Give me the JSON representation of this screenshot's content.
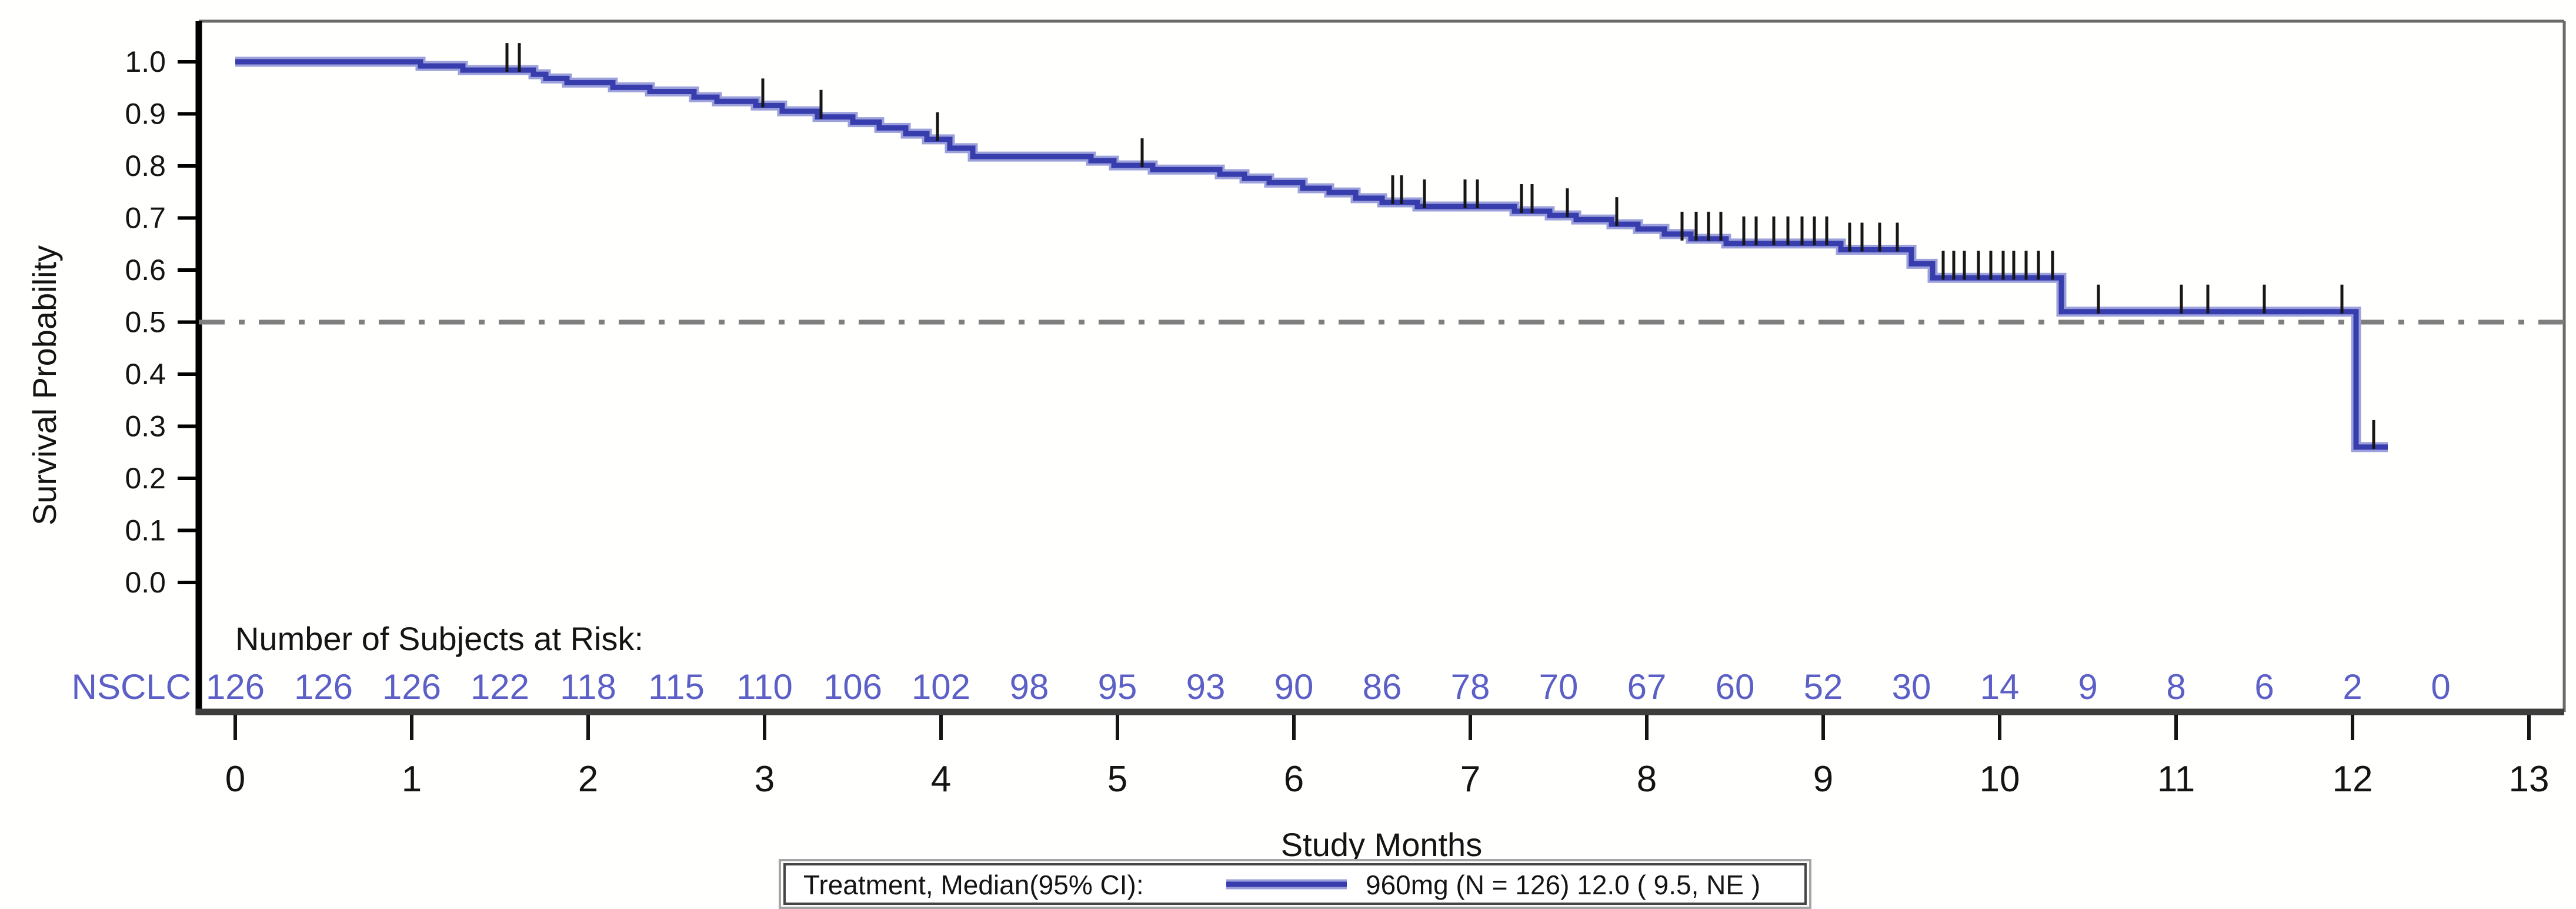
{
  "colors": {
    "curve": "#373dac",
    "curve_halo": "#9ca1db",
    "censor": "#161616",
    "risk_text": "#5b5fc6",
    "reference_line": "#7e7e7e",
    "axis": "#000000",
    "axis_bottom": "#3d3d3d",
    "frame": "#6a6a6a",
    "text": "#141414",
    "legend_border": "#454545",
    "legend_border_outer": "#a5a5a5"
  },
  "y_axis": {
    "label": "Survival Probability",
    "ticks": [
      1.0,
      0.9,
      0.8,
      0.7,
      0.6,
      0.5,
      0.4,
      0.3,
      0.2,
      0.1,
      0.0
    ]
  },
  "x_axis": {
    "label": "Study Months",
    "ticks": [
      0,
      1,
      2,
      3,
      4,
      5,
      6,
      7,
      8,
      9,
      10,
      11,
      12,
      13
    ]
  },
  "reference_line": 0.5,
  "at_risk": {
    "heading": "Number of Subjects at Risk:",
    "group": "NSCLC",
    "times": [
      0,
      0.5,
      1,
      1.5,
      2,
      2.5,
      3,
      3.5,
      4,
      4.5,
      5,
      5.5,
      6,
      6.5,
      7,
      7.5,
      8,
      8.5,
      9,
      9.5,
      10,
      10.5,
      11,
      11.5,
      12,
      12.5
    ],
    "counts": [
      126,
      126,
      126,
      122,
      118,
      115,
      110,
      106,
      102,
      98,
      95,
      93,
      90,
      86,
      78,
      70,
      67,
      60,
      52,
      30,
      14,
      9,
      8,
      6,
      2,
      0
    ]
  },
  "legend": {
    "title": "Treatment, Median(95% CI):",
    "entry": "960mg (N = 126) 12.0 ( 9.5, NE )"
  },
  "chart_data": {
    "type": "line",
    "subtype": "kaplan-meier-step",
    "title": "",
    "xlabel": "Study Months",
    "ylabel": "Survival Probability",
    "xlim": [
      0,
      13
    ],
    "ylim": [
      0.0,
      1.0
    ],
    "grid": false,
    "legend_position": "bottom",
    "group": "960mg (N = 126)",
    "median_months": 12.0,
    "ci95": "( 9.5, NE )",
    "reference_line_y": 0.5,
    "curve_end_month": 12.2,
    "steps": [
      [
        0.0,
        1.0
      ],
      [
        1.05,
        0.992
      ],
      [
        1.29,
        0.984
      ],
      [
        1.69,
        0.976
      ],
      [
        1.76,
        0.968
      ],
      [
        1.88,
        0.96
      ],
      [
        2.14,
        0.951
      ],
      [
        2.35,
        0.943
      ],
      [
        2.6,
        0.932
      ],
      [
        2.73,
        0.924
      ],
      [
        2.95,
        0.916
      ],
      [
        3.1,
        0.905
      ],
      [
        3.3,
        0.894
      ],
      [
        3.5,
        0.884
      ],
      [
        3.65,
        0.873
      ],
      [
        3.8,
        0.862
      ],
      [
        3.92,
        0.851
      ],
      [
        4.05,
        0.834
      ],
      [
        4.18,
        0.818
      ],
      [
        4.85,
        0.81
      ],
      [
        4.98,
        0.801
      ],
      [
        5.2,
        0.793
      ],
      [
        5.58,
        0.784
      ],
      [
        5.72,
        0.776
      ],
      [
        5.86,
        0.768
      ],
      [
        6.05,
        0.757
      ],
      [
        6.2,
        0.749
      ],
      [
        6.35,
        0.738
      ],
      [
        6.5,
        0.73
      ],
      [
        6.7,
        0.722
      ],
      [
        7.25,
        0.713
      ],
      [
        7.45,
        0.705
      ],
      [
        7.6,
        0.697
      ],
      [
        7.8,
        0.688
      ],
      [
        7.95,
        0.679
      ],
      [
        8.1,
        0.669
      ],
      [
        8.25,
        0.66
      ],
      [
        8.45,
        0.651
      ],
      [
        9.1,
        0.639
      ],
      [
        9.5,
        0.612
      ],
      [
        9.62,
        0.585
      ],
      [
        10.35,
        0.52
      ],
      [
        12.02,
        0.26
      ]
    ],
    "censor_marks": [
      [
        1.54,
        0.984
      ],
      [
        1.61,
        0.984
      ],
      [
        2.99,
        0.916
      ],
      [
        3.32,
        0.894
      ],
      [
        3.98,
        0.851
      ],
      [
        5.14,
        0.801
      ],
      [
        6.56,
        0.73
      ],
      [
        6.61,
        0.73
      ],
      [
        6.74,
        0.722
      ],
      [
        6.97,
        0.722
      ],
      [
        7.04,
        0.722
      ],
      [
        7.29,
        0.713
      ],
      [
        7.35,
        0.713
      ],
      [
        7.55,
        0.705
      ],
      [
        7.83,
        0.688
      ],
      [
        8.2,
        0.66
      ],
      [
        8.28,
        0.66
      ],
      [
        8.35,
        0.66
      ],
      [
        8.42,
        0.66
      ],
      [
        8.55,
        0.651
      ],
      [
        8.62,
        0.651
      ],
      [
        8.72,
        0.651
      ],
      [
        8.8,
        0.651
      ],
      [
        8.88,
        0.651
      ],
      [
        8.95,
        0.651
      ],
      [
        9.02,
        0.651
      ],
      [
        9.15,
        0.639
      ],
      [
        9.22,
        0.639
      ],
      [
        9.32,
        0.639
      ],
      [
        9.42,
        0.639
      ],
      [
        9.68,
        0.585
      ],
      [
        9.74,
        0.585
      ],
      [
        9.8,
        0.585
      ],
      [
        9.88,
        0.585
      ],
      [
        9.95,
        0.585
      ],
      [
        10.02,
        0.585
      ],
      [
        10.08,
        0.585
      ],
      [
        10.15,
        0.585
      ],
      [
        10.22,
        0.585
      ],
      [
        10.3,
        0.585
      ],
      [
        10.56,
        0.52
      ],
      [
        11.03,
        0.52
      ],
      [
        11.18,
        0.52
      ],
      [
        11.5,
        0.52
      ],
      [
        11.94,
        0.52
      ],
      [
        12.12,
        0.26
      ]
    ]
  }
}
